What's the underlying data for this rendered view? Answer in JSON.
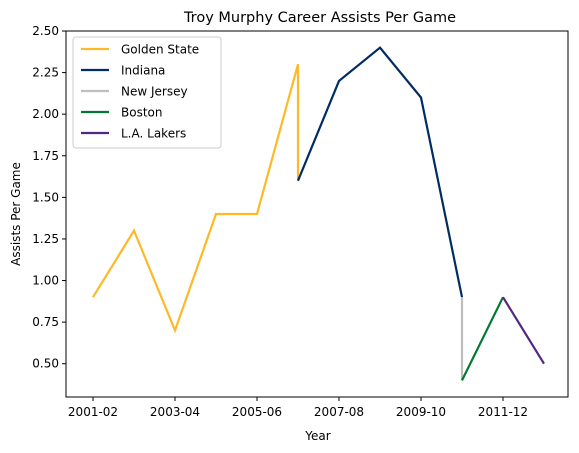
{
  "chart_data": {
    "type": "line",
    "title": "Troy Murphy Career Assists Per Game",
    "xlabel": "Year",
    "ylabel": "Assists Per Game",
    "x_categories": [
      "2001-02",
      "2002-03",
      "2003-04",
      "2004-05",
      "2005-06",
      "2006-07",
      "2007-08",
      "2008-09",
      "2009-10",
      "2010-11",
      "2011-12",
      "2012-13"
    ],
    "x_tick_labels": [
      "2001-02",
      "2003-04",
      "2005-06",
      "2007-08",
      "2009-10",
      "2011-12"
    ],
    "ylim": [
      0.3,
      2.5
    ],
    "y_ticks": [
      "0.50",
      "0.75",
      "1.00",
      "1.25",
      "1.50",
      "1.75",
      "2.00",
      "2.25",
      "2.50"
    ],
    "grid": false,
    "legend_position": "top-left",
    "series": [
      {
        "name": "Golden State",
        "color": "#FDB927",
        "points": [
          [
            0,
            0.9
          ],
          [
            1,
            1.3
          ],
          [
            2,
            0.7
          ],
          [
            3,
            1.4
          ],
          [
            4,
            1.4
          ],
          [
            5,
            2.3
          ],
          [
            5,
            1.6
          ]
        ]
      },
      {
        "name": "Indiana",
        "color": "#002D62",
        "points": [
          [
            5,
            1.6
          ],
          [
            6,
            2.2
          ],
          [
            7,
            2.4
          ],
          [
            8,
            2.1
          ],
          [
            9,
            0.9
          ]
        ]
      },
      {
        "name": "New Jersey",
        "color": "#BEBEBE",
        "points": [
          [
            9,
            0.9
          ],
          [
            9,
            0.4
          ]
        ]
      },
      {
        "name": "Boston",
        "color": "#007A33",
        "points": [
          [
            9,
            0.4
          ],
          [
            10,
            0.9
          ]
        ]
      },
      {
        "name": "L.A. Lakers",
        "color": "#552583",
        "points": [
          [
            10,
            0.9
          ],
          [
            11,
            0.5
          ]
        ]
      }
    ]
  }
}
